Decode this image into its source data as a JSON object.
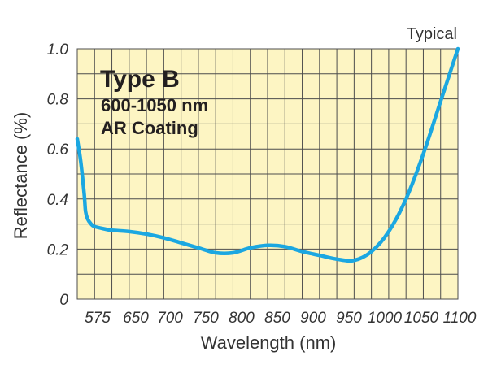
{
  "chart_data": {
    "type": "line",
    "title": "",
    "xlabel": "Wavelength (nm)",
    "ylabel": "Reflectance (%)",
    "xlim": [
      550,
      1100
    ],
    "ylim": [
      0,
      1.0
    ],
    "x_ticks": [
      575,
      650,
      700,
      750,
      800,
      850,
      900,
      950,
      1000,
      1050,
      1100
    ],
    "y_ticks": [
      "0",
      "0.2",
      "0.4",
      "0.6",
      "0.8",
      "1.0"
    ],
    "grid": true,
    "annotations": {
      "top_right": "Typical",
      "heading": "Type B",
      "line1": "600-1050 nm",
      "line2": "AR Coating"
    },
    "series": [
      {
        "color": "#1ba7e1",
        "x": [
          550,
          555,
          560,
          562,
          565,
          570,
          575,
          590,
          600,
          625,
          650,
          675,
          700,
          725,
          750,
          775,
          800,
          825,
          850,
          875,
          900,
          925,
          950,
          975,
          1000,
          1025,
          1050,
          1075,
          1100
        ],
        "y": [
          0.64,
          0.55,
          0.42,
          0.35,
          0.32,
          0.3,
          0.29,
          0.28,
          0.275,
          0.27,
          0.26,
          0.245,
          0.225,
          0.205,
          0.185,
          0.185,
          0.205,
          0.215,
          0.21,
          0.19,
          0.175,
          0.16,
          0.155,
          0.19,
          0.27,
          0.4,
          0.58,
          0.79,
          1.0
        ]
      }
    ],
    "colors": {
      "plot_background": "#fdf5c3",
      "gridline": "#4d4d4d",
      "line": "#1ba7e1"
    }
  }
}
